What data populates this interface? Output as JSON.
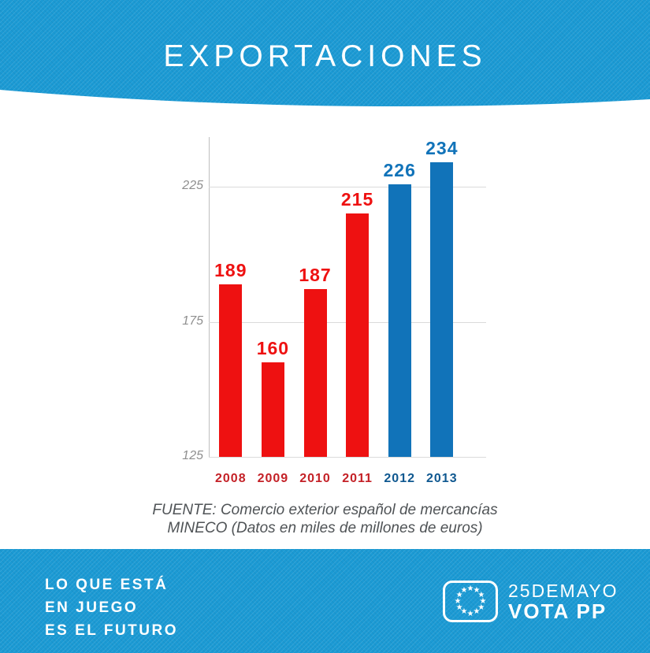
{
  "header": {
    "title": "EXPORTACIONES"
  },
  "chart_data": {
    "type": "bar",
    "title": "EXPORTACIONES",
    "categories": [
      "2008",
      "2009",
      "2010",
      "2011",
      "2012",
      "2013"
    ],
    "values": [
      189,
      160,
      187,
      215,
      226,
      234
    ],
    "bar_colors": [
      "#ee1111",
      "#ee1111",
      "#ee1111",
      "#ee1111",
      "#1173b9",
      "#1173b9"
    ],
    "category_label_colors": [
      "#c42127",
      "#c42127",
      "#c42127",
      "#c42127",
      "#0f5890",
      "#0f5890"
    ],
    "yticks": [
      225,
      175,
      125
    ],
    "ylim": [
      125,
      240
    ],
    "grid": true,
    "legend": false,
    "value_labels": true,
    "xlabel": "",
    "ylabel": ""
  },
  "source": {
    "line1": "FUENTE: Comercio exterior español de mercancías",
    "line2": "MINECO (Datos en miles de millones de euros)"
  },
  "footer": {
    "slogan_lines": [
      "LO QUE ESTÁ",
      "EN JUEGO",
      "ES EL FUTURO"
    ],
    "campaign": {
      "date": "25DEMAYO",
      "vote": "VOTA PP"
    }
  },
  "colors": {
    "brand_blue": "#1b9ad4",
    "bar_red": "#ee1111",
    "bar_blue": "#1173b9"
  }
}
